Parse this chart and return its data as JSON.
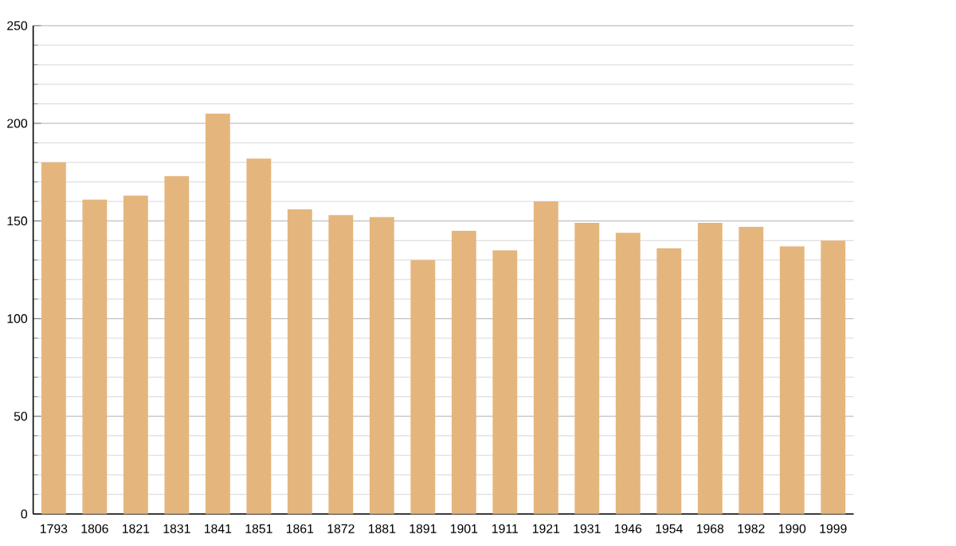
{
  "chart_data": {
    "type": "bar",
    "categories": [
      "1793",
      "1806",
      "1821",
      "1831",
      "1841",
      "1851",
      "1861",
      "1872",
      "1881",
      "1891",
      "1901",
      "1911",
      "1921",
      "1931",
      "1946",
      "1954",
      "1968",
      "1982",
      "1990",
      "1999"
    ],
    "values": [
      180,
      161,
      163,
      173,
      205,
      182,
      156,
      153,
      152,
      130,
      145,
      135,
      160,
      149,
      144,
      136,
      149,
      147,
      137,
      140
    ],
    "color": "#e4b67e",
    "ylim": [
      0,
      250
    ],
    "yticks": [
      0,
      50,
      100,
      150,
      200,
      250
    ],
    "grid": "y"
  }
}
